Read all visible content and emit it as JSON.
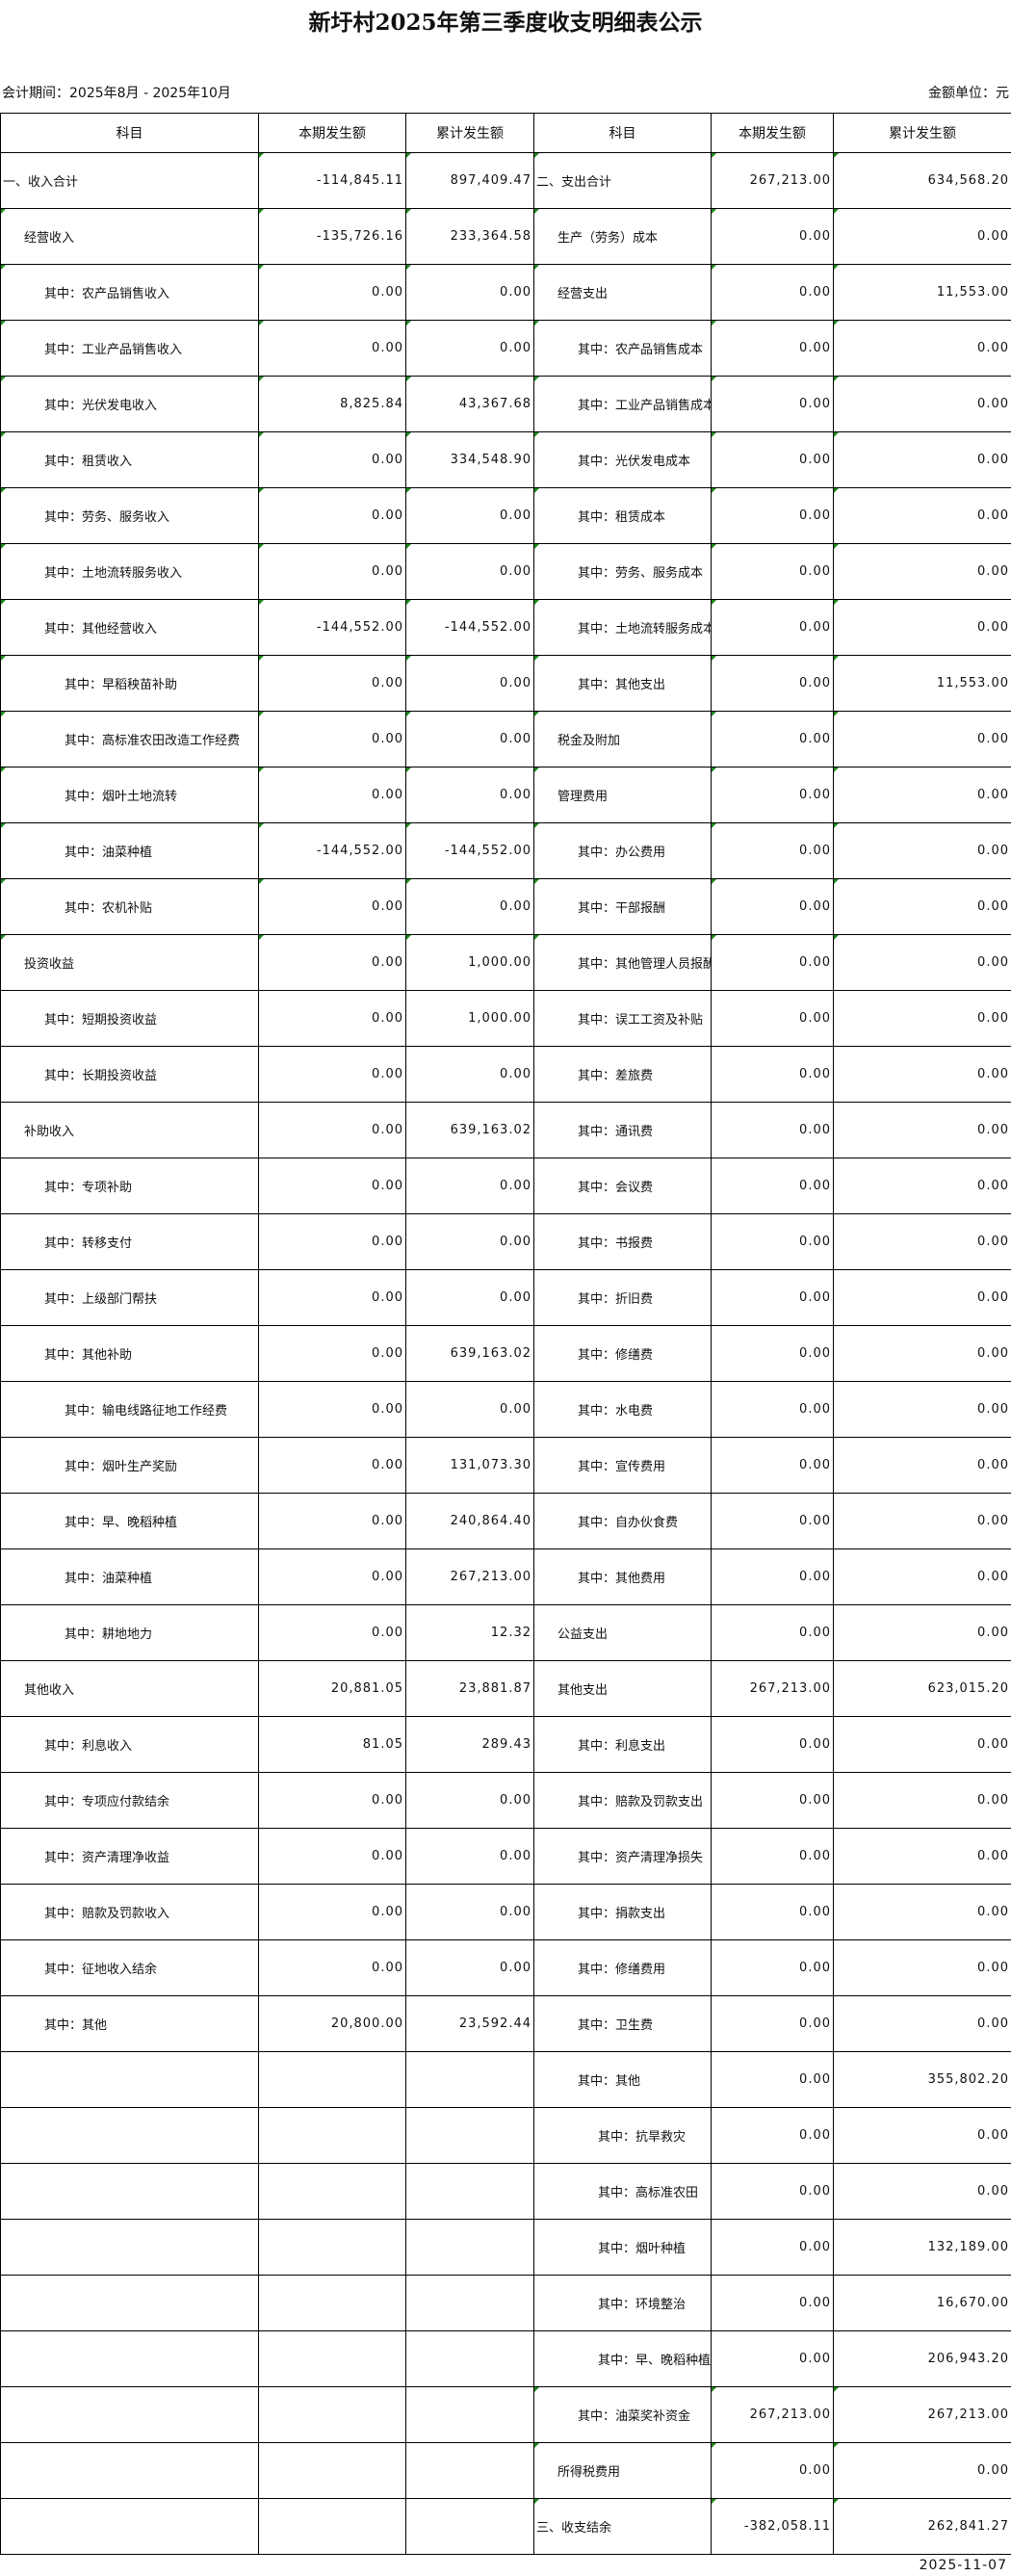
{
  "title": "新圩村2025年第三季度收支明细表公示",
  "period": "会计期间：2025年8月 - 2025年10月",
  "unit": "金额单位：元",
  "headers": [
    "科目",
    "本期发生额",
    "累计发生额",
    "科目",
    "本期发生额",
    "累计发生额"
  ],
  "footer_date": "2025-11-07",
  "colors": {
    "border": "#000000",
    "cell_flag": "#1a8a1a"
  },
  "rows": [
    {
      "l": [
        "一、收入合计",
        0,
        "-114,845.11",
        "897,409.47"
      ],
      "r": [
        "二、支出合计",
        0,
        "267,213.00",
        "634,568.20"
      ]
    },
    {
      "l": [
        "经营收入",
        1,
        "-135,726.16",
        "233,364.58"
      ],
      "r": [
        "生产（劳务）成本",
        1,
        "0.00",
        "0.00"
      ]
    },
    {
      "l": [
        "其中：农产品销售收入",
        2,
        "0.00",
        "0.00"
      ],
      "r": [
        "经营支出",
        1,
        "0.00",
        "11,553.00"
      ]
    },
    {
      "l": [
        "其中：工业产品销售收入",
        2,
        "0.00",
        "0.00"
      ],
      "r": [
        "其中：农产品销售成本",
        2,
        "0.00",
        "0.00"
      ]
    },
    {
      "l": [
        "其中：光伏发电收入",
        2,
        "8,825.84",
        "43,367.68"
      ],
      "r": [
        "其中：工业产品销售成本",
        2,
        "0.00",
        "0.00"
      ]
    },
    {
      "l": [
        "其中：租赁收入",
        2,
        "0.00",
        "334,548.90"
      ],
      "r": [
        "其中：光伏发电成本",
        2,
        "0.00",
        "0.00"
      ]
    },
    {
      "l": [
        "其中：劳务、服务收入",
        2,
        "0.00",
        "0.00"
      ],
      "r": [
        "其中：租赁成本",
        2,
        "0.00",
        "0.00"
      ]
    },
    {
      "l": [
        "其中：土地流转服务收入",
        2,
        "0.00",
        "0.00"
      ],
      "r": [
        "其中：劳务、服务成本",
        2,
        "0.00",
        "0.00"
      ]
    },
    {
      "l": [
        "其中：其他经营收入",
        2,
        "-144,552.00",
        "-144,552.00"
      ],
      "r": [
        "其中：土地流转服务成本",
        2,
        "0.00",
        "0.00"
      ]
    },
    {
      "l": [
        "其中：早稻秧苗补助",
        3,
        "0.00",
        "0.00"
      ],
      "r": [
        "其中：其他支出",
        2,
        "0.00",
        "11,553.00"
      ]
    },
    {
      "l": [
        "其中：高标准农田改造工作经费",
        3,
        "0.00",
        "0.00"
      ],
      "r": [
        "税金及附加",
        1,
        "0.00",
        "0.00"
      ]
    },
    {
      "l": [
        "其中：烟叶土地流转",
        3,
        "0.00",
        "0.00"
      ],
      "r": [
        "管理费用",
        1,
        "0.00",
        "0.00"
      ]
    },
    {
      "l": [
        "其中：油菜种植",
        3,
        "-144,552.00",
        "-144,552.00"
      ],
      "r": [
        "其中：办公费用",
        2,
        "0.00",
        "0.00"
      ]
    },
    {
      "l": [
        "其中：农机补贴",
        3,
        "0.00",
        "0.00"
      ],
      "r": [
        "其中：干部报酬",
        2,
        "0.00",
        "0.00"
      ]
    },
    {
      "l": [
        "投资收益",
        1,
        "0.00",
        "1,000.00"
      ],
      "r": [
        "其中：其他管理人员报酬",
        2,
        "0.00",
        "0.00"
      ]
    },
    {
      "l": [
        "其中：短期投资收益",
        2,
        "0.00",
        "1,000.00"
      ],
      "r": [
        "其中：误工工资及补贴",
        2,
        "0.00",
        "0.00"
      ]
    },
    {
      "l": [
        "其中：长期投资收益",
        2,
        "0.00",
        "0.00"
      ],
      "r": [
        "其中：差旅费",
        2,
        "0.00",
        "0.00"
      ]
    },
    {
      "l": [
        "补助收入",
        1,
        "0.00",
        "639,163.02"
      ],
      "r": [
        "其中：通讯费",
        2,
        "0.00",
        "0.00"
      ]
    },
    {
      "l": [
        "其中：专项补助",
        2,
        "0.00",
        "0.00"
      ],
      "r": [
        "其中：会议费",
        2,
        "0.00",
        "0.00"
      ]
    },
    {
      "l": [
        "其中：转移支付",
        2,
        "0.00",
        "0.00"
      ],
      "r": [
        "其中：书报费",
        2,
        "0.00",
        "0.00"
      ]
    },
    {
      "l": [
        "其中：上级部门帮扶",
        2,
        "0.00",
        "0.00"
      ],
      "r": [
        "其中：折旧费",
        2,
        "0.00",
        "0.00"
      ]
    },
    {
      "l": [
        "其中：其他补助",
        2,
        "0.00",
        "639,163.02"
      ],
      "r": [
        "其中：修缮费",
        2,
        "0.00",
        "0.00"
      ]
    },
    {
      "l": [
        "其中：输电线路征地工作经费",
        3,
        "0.00",
        "0.00"
      ],
      "r": [
        "其中：水电费",
        2,
        "0.00",
        "0.00"
      ]
    },
    {
      "l": [
        "其中：烟叶生产奖励",
        3,
        "0.00",
        "131,073.30"
      ],
      "r": [
        "其中：宣传费用",
        2,
        "0.00",
        "0.00"
      ]
    },
    {
      "l": [
        "其中：早、晚稻种植",
        3,
        "0.00",
        "240,864.40"
      ],
      "r": [
        "其中：自办伙食费",
        2,
        "0.00",
        "0.00"
      ]
    },
    {
      "l": [
        "其中：油菜种植",
        3,
        "0.00",
        "267,213.00"
      ],
      "r": [
        "其中：其他费用",
        2,
        "0.00",
        "0.00"
      ]
    },
    {
      "l": [
        "其中：耕地地力",
        3,
        "0.00",
        "12.32"
      ],
      "r": [
        "公益支出",
        1,
        "0.00",
        "0.00"
      ]
    },
    {
      "l": [
        "其他收入",
        1,
        "20,881.05",
        "23,881.87"
      ],
      "r": [
        "其他支出",
        1,
        "267,213.00",
        "623,015.20"
      ]
    },
    {
      "l": [
        "其中：利息收入",
        2,
        "81.05",
        "289.43"
      ],
      "r": [
        "其中：利息支出",
        2,
        "0.00",
        "0.00"
      ]
    },
    {
      "l": [
        "其中：专项应付款结余",
        2,
        "0.00",
        "0.00"
      ],
      "r": [
        "其中：赔款及罚款支出",
        2,
        "0.00",
        "0.00"
      ]
    },
    {
      "l": [
        "其中：资产清理净收益",
        2,
        "0.00",
        "0.00"
      ],
      "r": [
        "其中：资产清理净损失",
        2,
        "0.00",
        "0.00"
      ]
    },
    {
      "l": [
        "其中：赔款及罚款收入",
        2,
        "0.00",
        "0.00"
      ],
      "r": [
        "其中：捐款支出",
        2,
        "0.00",
        "0.00"
      ]
    },
    {
      "l": [
        "其中：征地收入结余",
        2,
        "0.00",
        "0.00"
      ],
      "r": [
        "其中：修缮费用",
        2,
        "0.00",
        "0.00"
      ]
    },
    {
      "l": [
        "其中：其他",
        2,
        "20,800.00",
        "23,592.44"
      ],
      "r": [
        "其中：卫生费",
        2,
        "0.00",
        "0.00"
      ]
    },
    {
      "l": [
        "",
        0,
        "",
        ""
      ],
      "r": [
        "其中：其他",
        2,
        "0.00",
        "355,802.20"
      ]
    },
    {
      "l": [
        "",
        0,
        "",
        ""
      ],
      "r": [
        "其中：抗旱救灾",
        3,
        "0.00",
        "0.00"
      ]
    },
    {
      "l": [
        "",
        0,
        "",
        ""
      ],
      "r": [
        "其中：高标准农田",
        3,
        "0.00",
        "0.00"
      ]
    },
    {
      "l": [
        "",
        0,
        "",
        ""
      ],
      "r": [
        "其中：烟叶种植",
        3,
        "0.00",
        "132,189.00"
      ]
    },
    {
      "l": [
        "",
        0,
        "",
        ""
      ],
      "r": [
        "其中：环境整治",
        3,
        "0.00",
        "16,670.00"
      ]
    },
    {
      "l": [
        "",
        0,
        "",
        ""
      ],
      "r": [
        "其中：早、晚稻种植",
        3,
        "0.00",
        "206,943.20"
      ]
    },
    {
      "l": [
        "",
        0,
        "",
        ""
      ],
      "r": [
        "其中：油菜奖补资金",
        2,
        "267,213.00",
        "267,213.00"
      ]
    },
    {
      "l": [
        "",
        0,
        "",
        ""
      ],
      "r": [
        "所得税费用",
        1,
        "0.00",
        "0.00"
      ]
    },
    {
      "l": [
        "",
        0,
        "",
        ""
      ],
      "r": [
        "三、收支结余",
        0,
        "-382,058.11",
        "262,841.27"
      ]
    }
  ]
}
